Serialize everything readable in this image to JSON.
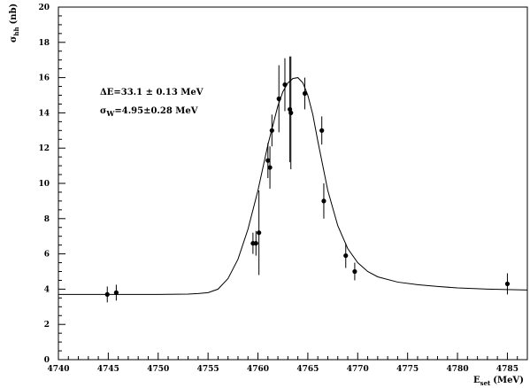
{
  "chart_data": {
    "type": "scatter",
    "ylabel_main": "σ",
    "ylabel_sub": "hh",
    "ylabel_unit": "(nb)",
    "xlabel_main": "E",
    "xlabel_sub": "set",
    "xlabel_unit": "(MeV)",
    "xlim": [
      4740,
      4787
    ],
    "ylim": [
      0,
      20
    ],
    "x_ticks": [
      4740,
      4745,
      4750,
      4755,
      4760,
      4765,
      4770,
      4775,
      4780,
      4785
    ],
    "x_tick_labels": [
      "4740",
      "4745",
      "4750",
      "4755",
      "4760",
      "4765",
      "4770",
      "4775",
      "4780",
      "4785"
    ],
    "y_ticks": [
      0,
      2,
      4,
      6,
      8,
      10,
      12,
      14,
      16,
      18,
      20
    ],
    "y_tick_labels": [
      "0",
      "2",
      "4",
      "6",
      "8",
      "10",
      "12",
      "14",
      "16",
      "18",
      "20"
    ],
    "annotations": {
      "delta_e": "ΔE=33.1 ± 0.13 MeV",
      "sigma_w_symbol": "σ",
      "sigma_w_sub": "W",
      "sigma_w_value": "=4.95±0.28 MeV"
    },
    "series": [
      {
        "points": [
          {
            "x": 4744.9,
            "y": 3.7,
            "err": 0.45
          },
          {
            "x": 4745.8,
            "y": 3.8,
            "err": 0.45
          },
          {
            "x": 4759.5,
            "y": 6.6,
            "err": 0.6
          },
          {
            "x": 4759.8,
            "y": 6.6,
            "err": 0.7
          },
          {
            "x": 4760.1,
            "y": 7.2,
            "err": 2.4
          },
          {
            "x": 4761.0,
            "y": 11.3,
            "err": 1.0
          },
          {
            "x": 4761.2,
            "y": 10.9,
            "err": 1.2
          },
          {
            "x": 4761.4,
            "y": 13.0,
            "err": 0.9
          },
          {
            "x": 4762.1,
            "y": 14.8,
            "err": 1.9
          },
          {
            "x": 4762.7,
            "y": 15.6,
            "err": 1.5
          },
          {
            "x": 4763.2,
            "y": 14.2,
            "err": 3.0
          },
          {
            "x": 4763.3,
            "y": 14.0,
            "err": 3.2
          },
          {
            "x": 4764.7,
            "y": 15.1,
            "err": 0.9
          },
          {
            "x": 4766.4,
            "y": 13.0,
            "err": 0.8
          },
          {
            "x": 4766.6,
            "y": 9.0,
            "err": 1.0
          },
          {
            "x": 4768.8,
            "y": 5.9,
            "err": 0.7
          },
          {
            "x": 4769.7,
            "y": 5.0,
            "err": 0.5
          },
          {
            "x": 4785.0,
            "y": 4.3,
            "err": 0.6
          }
        ]
      }
    ],
    "fit_curve": {
      "x": [
        4740,
        4745,
        4750,
        4753,
        4754,
        4755,
        4756,
        4757,
        4758,
        4759,
        4760,
        4761,
        4762,
        4762.5,
        4763,
        4763.5,
        4764,
        4764.5,
        4765,
        4765.5,
        4766,
        4767,
        4768,
        4769,
        4770,
        4771,
        4772,
        4774,
        4776,
        4778,
        4780,
        4783,
        4787
      ],
      "y": [
        3.7,
        3.7,
        3.7,
        3.72,
        3.75,
        3.8,
        4.0,
        4.6,
        5.7,
        7.4,
        9.6,
        12.2,
        14.4,
        15.2,
        15.7,
        15.95,
        16.0,
        15.7,
        15.0,
        13.9,
        12.4,
        9.6,
        7.6,
        6.3,
        5.5,
        5.0,
        4.7,
        4.4,
        4.25,
        4.15,
        4.07,
        4.0,
        3.95
      ]
    }
  }
}
